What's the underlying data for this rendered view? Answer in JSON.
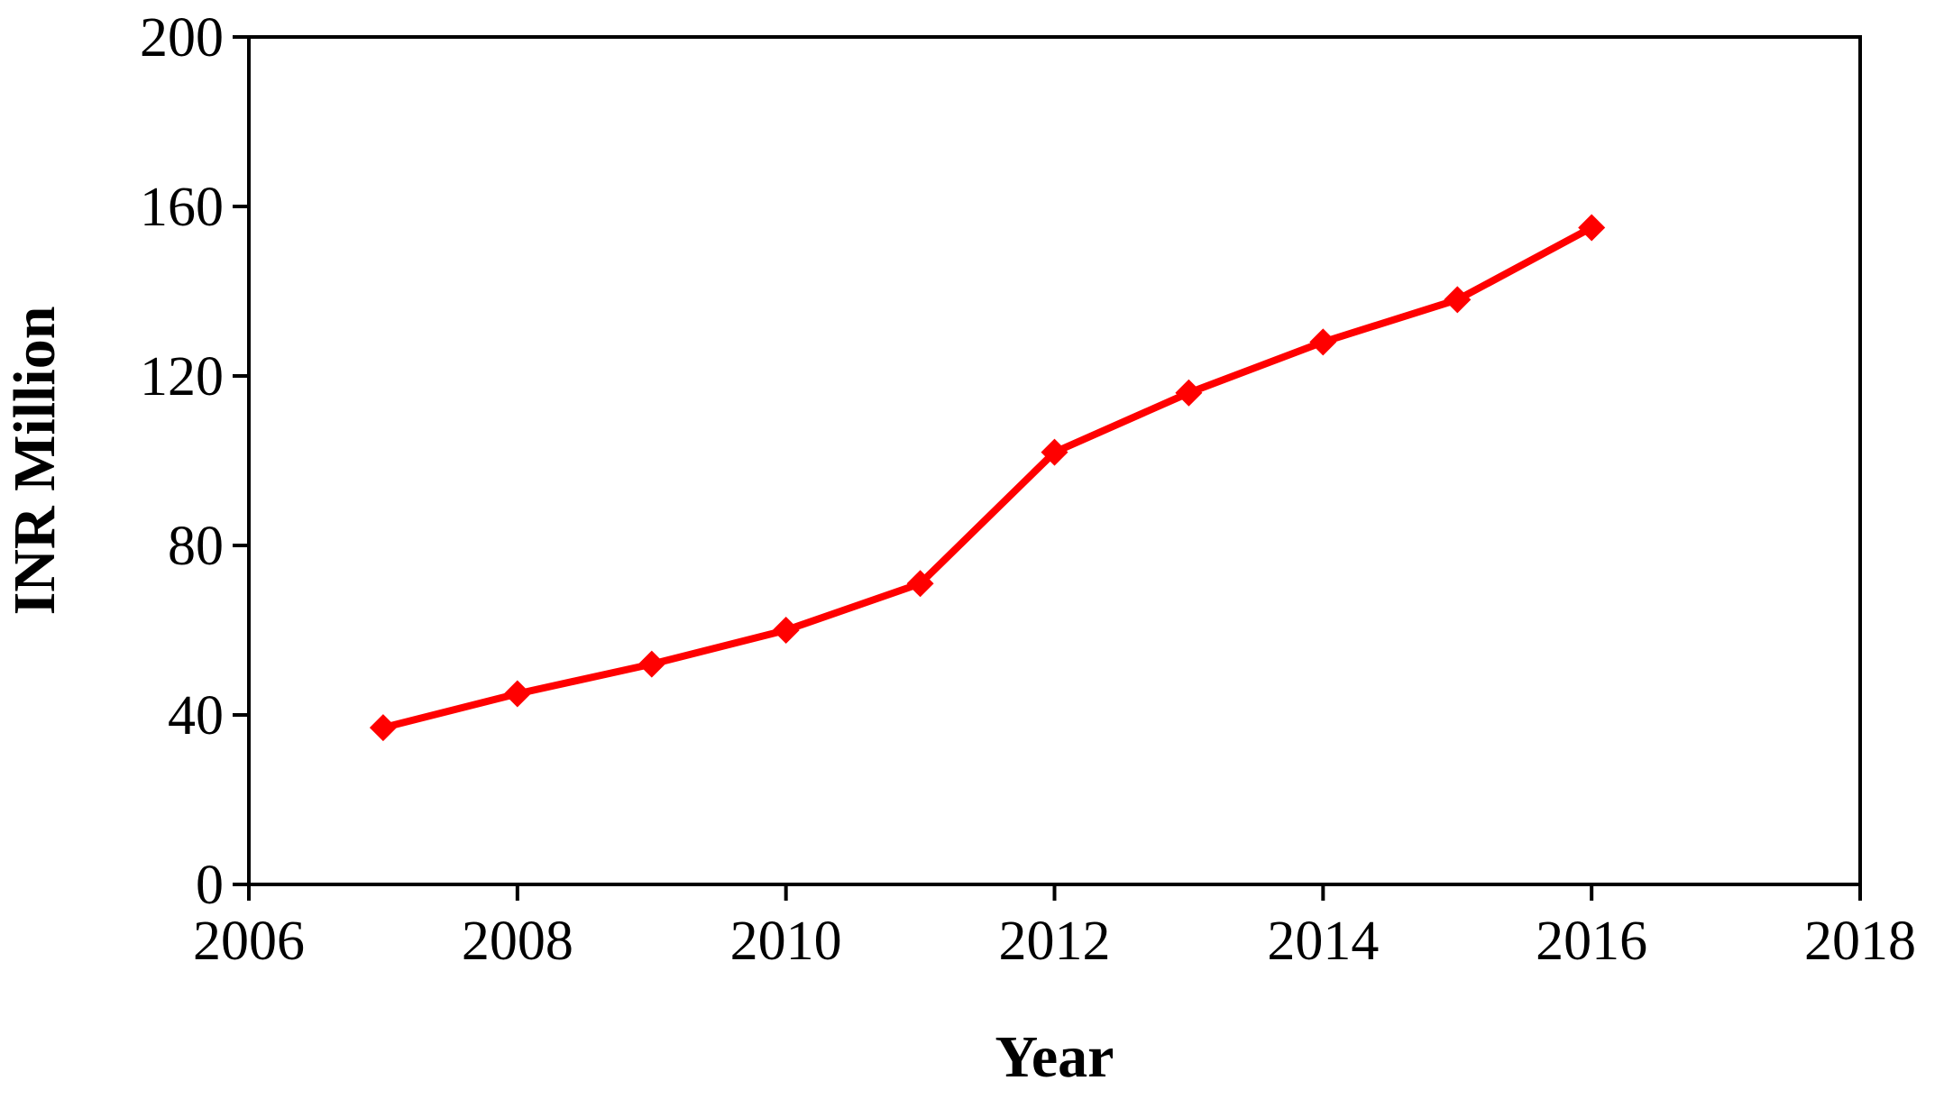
{
  "chart_data": {
    "type": "line",
    "title": "",
    "xlabel": "Year",
    "ylabel": "INR Million",
    "xlim": [
      2006,
      2018
    ],
    "ylim": [
      0,
      200
    ],
    "x_ticks": [
      2006,
      2008,
      2010,
      2012,
      2014,
      2016,
      2018
    ],
    "y_ticks": [
      0,
      40,
      80,
      120,
      160,
      200
    ],
    "x_tick_labels": [
      "2006",
      "2008",
      "2010",
      "2012",
      "2014",
      "2016",
      "2018"
    ],
    "y_tick_labels": [
      "0",
      "40",
      "80",
      "120",
      "160",
      "200"
    ],
    "grid": false,
    "legend": "none",
    "series": [
      {
        "color": "#ff0000",
        "marker": "diamond",
        "points": [
          {
            "x": 2007,
            "y": 37
          },
          {
            "x": 2008,
            "y": 45
          },
          {
            "x": 2009,
            "y": 52
          },
          {
            "x": 2010,
            "y": 60
          },
          {
            "x": 2011,
            "y": 71
          },
          {
            "x": 2012,
            "y": 102
          },
          {
            "x": 2013,
            "y": 116
          },
          {
            "x": 2014,
            "y": 128
          },
          {
            "x": 2015,
            "y": 138
          },
          {
            "x": 2016,
            "y": 155
          }
        ]
      }
    ]
  }
}
